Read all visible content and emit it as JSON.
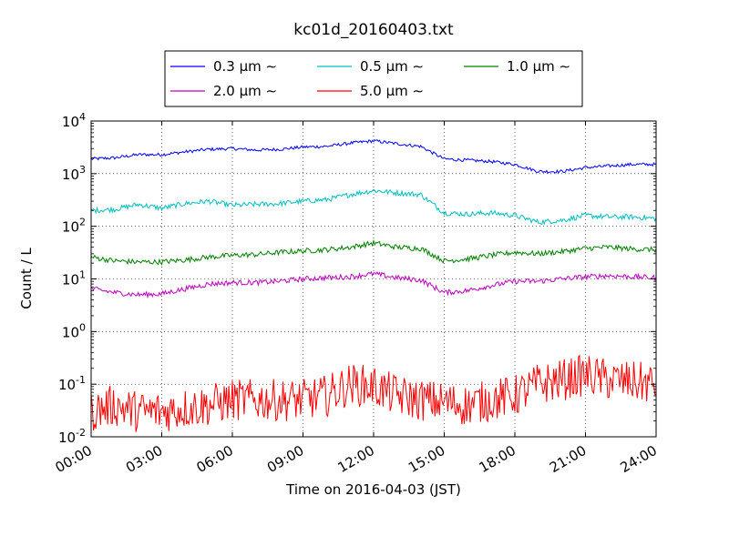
{
  "chart_data": {
    "type": "line",
    "title": "kc01d_20160403.txt",
    "xlabel": "Time on 2016-04-03 (JST)",
    "ylabel": "Count / L",
    "xlim": [
      "2016-04-03 00:00",
      "2016-04-04 00:00"
    ],
    "ylim": [
      0.01,
      10000
    ],
    "yscale": "log",
    "grid": true,
    "legend_position": "top-center",
    "x_ticks": [
      "00:00",
      "03:00",
      "06:00",
      "09:00",
      "12:00",
      "15:00",
      "18:00",
      "21:00",
      "24:00"
    ],
    "y_ticks": [
      {
        "base": "10",
        "exp": "-2"
      },
      {
        "base": "10",
        "exp": "-1"
      },
      {
        "base": "10",
        "exp": "0"
      },
      {
        "base": "10",
        "exp": "1"
      },
      {
        "base": "10",
        "exp": "2"
      },
      {
        "base": "10",
        "exp": "3"
      },
      {
        "base": "10",
        "exp": "4"
      }
    ],
    "x": [
      "00:00",
      "01:00",
      "02:00",
      "03:00",
      "04:00",
      "05:00",
      "06:00",
      "07:00",
      "08:00",
      "09:00",
      "10:00",
      "11:00",
      "12:00",
      "13:00",
      "14:00",
      "15:00",
      "16:00",
      "17:00",
      "18:00",
      "19:00",
      "20:00",
      "21:00",
      "22:00",
      "23:00",
      "24:00"
    ],
    "series": [
      {
        "name": "0.3 μm ∼",
        "color": "#0000ff",
        "noise": 0.03,
        "values": [
          1900,
          2000,
          2300,
          2300,
          2600,
          2900,
          3000,
          2800,
          2900,
          3200,
          3300,
          3800,
          4200,
          3700,
          3300,
          1900,
          1800,
          1700,
          1500,
          1100,
          1100,
          1300,
          1400,
          1500,
          1500
        ]
      },
      {
        "name": "0.5 μm ∼",
        "color": "#00bfbf",
        "noise": 0.05,
        "values": [
          200,
          210,
          260,
          220,
          270,
          300,
          250,
          260,
          270,
          300,
          320,
          400,
          480,
          430,
          400,
          180,
          170,
          180,
          160,
          120,
          130,
          160,
          150,
          150,
          140
        ]
      },
      {
        "name": "1.0 μm ∼",
        "color": "#008000",
        "noise": 0.05,
        "values": [
          26,
          22,
          21,
          21,
          23,
          26,
          28,
          29,
          32,
          34,
          36,
          40,
          48,
          40,
          38,
          22,
          24,
          28,
          32,
          30,
          33,
          38,
          40,
          37,
          36
        ]
      },
      {
        "name": "2.0 μm ∼",
        "color": "#bf00bf",
        "noise": 0.05,
        "values": [
          6.5,
          5.5,
          5,
          5.2,
          6.5,
          8,
          8.5,
          8.5,
          9,
          10,
          10.5,
          11,
          12.5,
          10.5,
          9.5,
          5.5,
          6,
          7.5,
          9,
          9,
          10,
          11,
          11.5,
          11,
          10.5
        ]
      },
      {
        "name": "5.0 μm ∼",
        "color": "#ff0000",
        "noise": 0.4,
        "values": [
          0.03,
          0.04,
          0.03,
          0.03,
          0.035,
          0.04,
          0.05,
          0.05,
          0.05,
          0.05,
          0.06,
          0.1,
          0.09,
          0.06,
          0.05,
          0.045,
          0.04,
          0.05,
          0.06,
          0.1,
          0.12,
          0.15,
          0.12,
          0.11,
          0.1
        ]
      }
    ]
  }
}
